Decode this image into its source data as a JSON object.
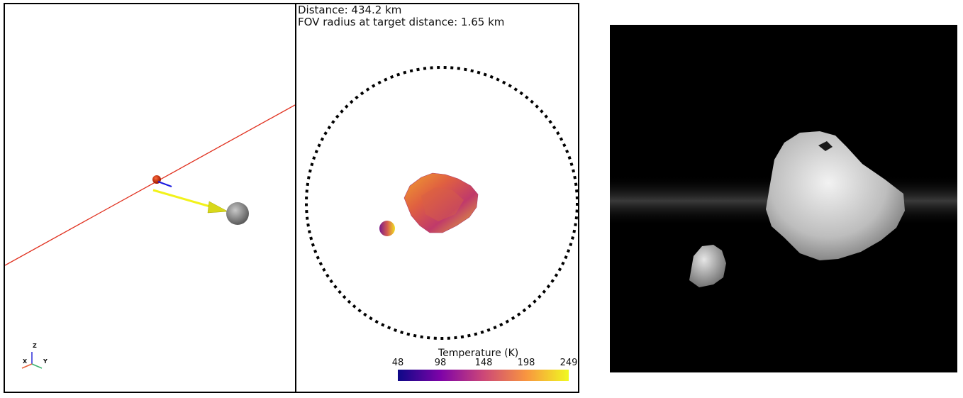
{
  "fov_view": {
    "distance_text": "Distance: 434.2 km",
    "fov_radius_text": "FOV radius at target distance: 1.65 km"
  },
  "colorbar": {
    "title": "Temperature (K)",
    "ticks": [
      "48",
      "98",
      "148",
      "198",
      "249"
    ],
    "colors": [
      "#0d0887",
      "#7e03a8",
      "#cc4778",
      "#f89540",
      "#f0f921"
    ]
  },
  "axes_triad": {
    "x_label": "X",
    "y_label": "Y",
    "z_label": "Z",
    "x_color": "#e8623a",
    "y_color": "#3cb371",
    "z_color": "#2a2ad8"
  },
  "scene_3d": {
    "trajectory_color": "#e0301e",
    "sun_vector_color": "#f2f21a",
    "spacecraft_color": "#cc2200",
    "target_color": "#8e8e8e"
  },
  "icons": {
    "spacecraft": "spacecraft-marker-icon",
    "target": "target-body-icon",
    "axes": "axes-triad-icon"
  }
}
